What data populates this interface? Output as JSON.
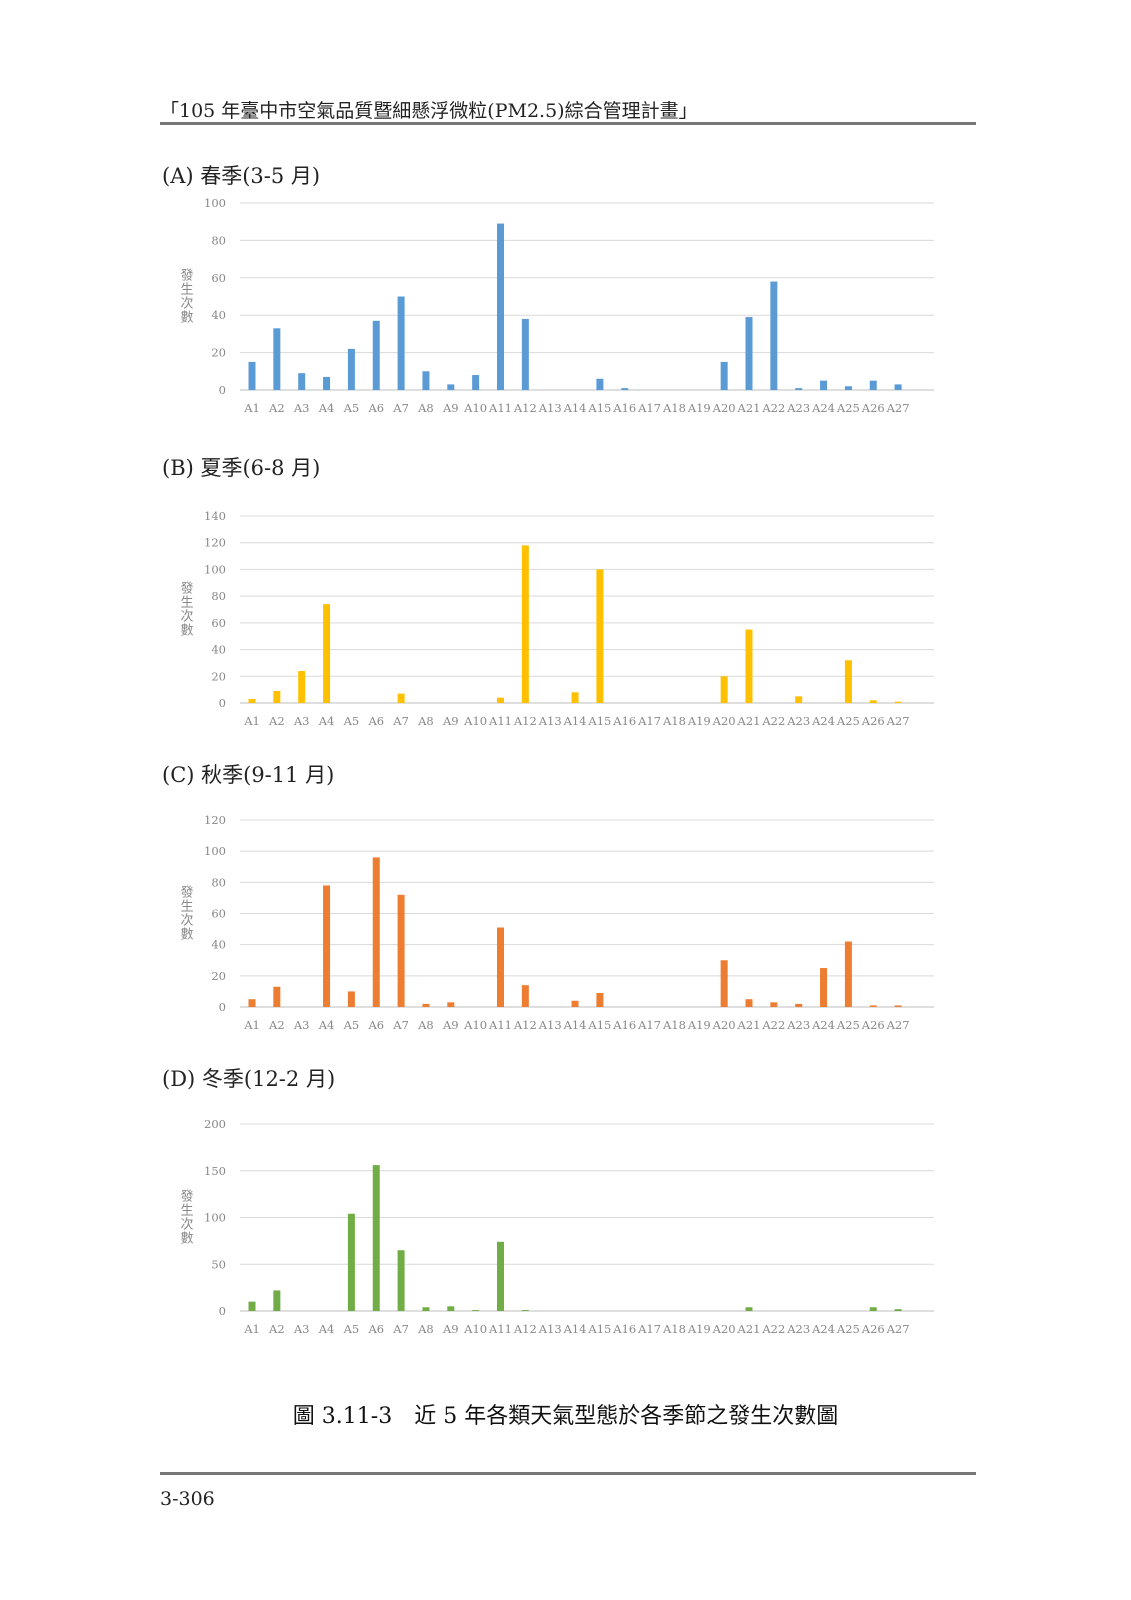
{
  "header": {
    "text": "「105 年臺中市空氣品質暨細懸浮微粒(PM2.5)綜合管理計畫」"
  },
  "caption": "圖 3.11-3　近 5 年各類天氣型態於各季節之發生次數圖",
  "page_number": "3-306",
  "chart_data": [
    {
      "type": "bar",
      "title": "(A)  春季(3-5 月)",
      "ylabel": "發生次數",
      "color": "#5b9bd5",
      "ylim": [
        0,
        100
      ],
      "yticks": [
        0,
        20,
        40,
        60,
        80,
        100
      ],
      "categories": [
        "A1",
        "A2",
        "A3",
        "A4",
        "A5",
        "A6",
        "A7",
        "A8",
        "A9",
        "A10",
        "A11",
        "A12",
        "A13",
        "A14",
        "A15",
        "A16",
        "A17",
        "A18",
        "A19",
        "A20",
        "A21",
        "A22",
        "A23",
        "A24",
        "A25",
        "A26",
        "A27"
      ],
      "values": [
        15,
        33,
        9,
        7,
        22,
        37,
        50,
        10,
        3,
        8,
        89,
        38,
        0,
        0,
        6,
        1,
        0,
        0,
        0,
        15,
        39,
        58,
        1,
        5,
        2,
        5,
        3
      ]
    },
    {
      "type": "bar",
      "title": "(B)  夏季(6-8 月)",
      "ylabel": "發生次數",
      "color": "#ffc000",
      "ylim": [
        0,
        140
      ],
      "yticks": [
        0,
        20,
        40,
        60,
        80,
        100,
        120,
        140
      ],
      "categories": [
        "A1",
        "A2",
        "A3",
        "A4",
        "A5",
        "A6",
        "A7",
        "A8",
        "A9",
        "A10",
        "A11",
        "A12",
        "A13",
        "A14",
        "A15",
        "A16",
        "A17",
        "A18",
        "A19",
        "A20",
        "A21",
        "A22",
        "A23",
        "A24",
        "A25",
        "A26",
        "A27"
      ],
      "values": [
        3,
        9,
        24,
        74,
        0,
        0,
        7,
        0,
        0,
        0,
        4,
        118,
        0,
        8,
        100,
        0,
        0,
        0,
        0,
        20,
        55,
        0,
        5,
        0,
        32,
        2,
        1
      ]
    },
    {
      "type": "bar",
      "title": "(C)  秋季(9-11 月)",
      "ylabel": "發生次數",
      "color": "#ed7d31",
      "ylim": [
        0,
        120
      ],
      "yticks": [
        0,
        20,
        40,
        60,
        80,
        100,
        120
      ],
      "categories": [
        "A1",
        "A2",
        "A3",
        "A4",
        "A5",
        "A6",
        "A7",
        "A8",
        "A9",
        "A10",
        "A11",
        "A12",
        "A13",
        "A14",
        "A15",
        "A16",
        "A17",
        "A18",
        "A19",
        "A20",
        "A21",
        "A22",
        "A23",
        "A24",
        "A25",
        "A26",
        "A27"
      ],
      "values": [
        5,
        13,
        0,
        78,
        10,
        96,
        72,
        2,
        3,
        0,
        51,
        14,
        0,
        4,
        9,
        0,
        0,
        0,
        0,
        30,
        5,
        3,
        2,
        25,
        42,
        1,
        1
      ]
    },
    {
      "type": "bar",
      "title": "(D)  冬季(12-2 月)",
      "ylabel": "發生次數",
      "color": "#70ad47",
      "ylim": [
        0,
        200
      ],
      "yticks": [
        0,
        50,
        100,
        150,
        200
      ],
      "categories": [
        "A1",
        "A2",
        "A3",
        "A4",
        "A5",
        "A6",
        "A7",
        "A8",
        "A9",
        "A10",
        "A11",
        "A12",
        "A13",
        "A14",
        "A15",
        "A16",
        "A17",
        "A18",
        "A19",
        "A20",
        "A21",
        "A22",
        "A23",
        "A24",
        "A25",
        "A26",
        "A27"
      ],
      "values": [
        10,
        22,
        0,
        0,
        104,
        156,
        65,
        4,
        5,
        1,
        74,
        1,
        0,
        0,
        0,
        0,
        0,
        0,
        0,
        0,
        4,
        0,
        0,
        0,
        0,
        4,
        2
      ]
    }
  ]
}
